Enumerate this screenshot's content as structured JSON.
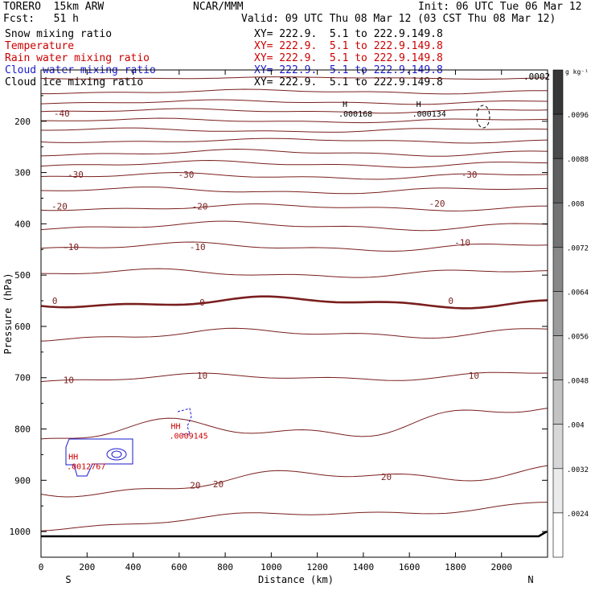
{
  "header": {
    "title_left": "TORERO  15km ARW",
    "title_center": "NCAR/MMM",
    "init": "Init: 06 UTC Tue 06 Mar 12",
    "fcst": "Fcst:   51 h",
    "valid": "Valid: 09 UTC Thu 08 Mar 12 (03 CST Thu 08 Mar 12)"
  },
  "fields": [
    {
      "name": "Snow mixing ratio",
      "xy": "XY= 222.9.  5.1 to 222.9.149.8",
      "color": "#000000"
    },
    {
      "name": "Temperature",
      "xy": "XY= 222.9.  5.1 to 222.9.149.8",
      "color": "#cc0000"
    },
    {
      "name": "Rain water mixing ratio",
      "xy": "XY= 222.9.  5.1 to 222.9.149.8",
      "color": "#cc0000"
    },
    {
      "name": "Cloud water mixing ratio",
      "xy": "XY= 222.9.  5.1 to 222.9.149.8",
      "color": "#1a1acc"
    },
    {
      "name": "Cloud ice mixing ratio",
      "xy": "XY= 222.9.  5.1 to 222.9.149.8",
      "color": "#000000"
    }
  ],
  "chart_data": {
    "type": "contour cross-section",
    "xlabel": "Distance (km)",
    "ylabel": "Pressure (hPa)",
    "xlim": [
      0,
      2200
    ],
    "ylim": [
      1050,
      100
    ],
    "x_ticks": [
      0,
      200,
      400,
      600,
      800,
      1000,
      1200,
      1400,
      1600,
      1800,
      2000
    ],
    "y_ticks": [
      200,
      300,
      400,
      500,
      600,
      700,
      800,
      900,
      1000
    ],
    "left_end": "S",
    "right_end": "N",
    "colorbar": {
      "unit": "g kg⁻¹",
      "levels": [
        ".0096",
        ".0088",
        ".008",
        ".0072",
        ".0064",
        ".0056",
        ".0048",
        ".004",
        ".0032",
        ".0024"
      ],
      "top_label": ".0002"
    },
    "temperature_labels": [
      {
        "x": 90,
        "p": 185,
        "text": "-40"
      },
      {
        "x": 150,
        "p": 304,
        "text": "-30"
      },
      {
        "x": 630,
        "p": 304,
        "text": "-30"
      },
      {
        "x": 1860,
        "p": 304,
        "text": "-30"
      },
      {
        "x": 80,
        "p": 366,
        "text": "-20"
      },
      {
        "x": 690,
        "p": 366,
        "text": "-20"
      },
      {
        "x": 1720,
        "p": 360,
        "text": "-20"
      },
      {
        "x": 130,
        "p": 445,
        "text": "-10"
      },
      {
        "x": 680,
        "p": 445,
        "text": "-10"
      },
      {
        "x": 1830,
        "p": 436,
        "text": "-10"
      },
      {
        "x": 60,
        "p": 550,
        "text": "0"
      },
      {
        "x": 700,
        "p": 553,
        "text": "0"
      },
      {
        "x": 1780,
        "p": 550,
        "text": "0"
      },
      {
        "x": 120,
        "p": 704,
        "text": "10"
      },
      {
        "x": 700,
        "p": 696,
        "text": "10"
      },
      {
        "x": 1880,
        "p": 696,
        "text": "10"
      },
      {
        "x": 670,
        "p": 910,
        "text": "20"
      },
      {
        "x": 770,
        "p": 907,
        "text": "20"
      },
      {
        "x": 1500,
        "p": 893,
        "text": "20"
      }
    ],
    "maxima": [
      {
        "x": 1320,
        "p": 178,
        "h": "H",
        "value": ".000168",
        "color": "#000000"
      },
      {
        "x": 1640,
        "p": 178,
        "h": "H",
        "value": ".000134",
        "color": "#000000"
      },
      {
        "x": 585,
        "p": 806,
        "h": "HH",
        "value": ".0009145",
        "color": "#cc0000"
      },
      {
        "x": 140,
        "p": 866,
        "h": "HH",
        "value": ".0012767",
        "color": "#cc0000"
      }
    ]
  }
}
